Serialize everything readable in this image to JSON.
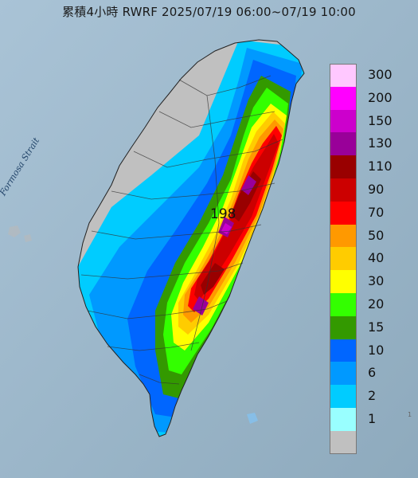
{
  "title": "累積4小時 RWRF 2025/07/19 06:00~07/19 10:00",
  "strait_label": "Formosa Strait",
  "max_value": "198",
  "corner_mark": "1",
  "legend": {
    "items": [
      {
        "label": "300",
        "color": "#ffc8ff"
      },
      {
        "label": "200",
        "color": "#ff00ff"
      },
      {
        "label": "150",
        "color": "#cc00cc"
      },
      {
        "label": "130",
        "color": "#990099"
      },
      {
        "label": "110",
        "color": "#990000"
      },
      {
        "label": "90",
        "color": "#cc0000"
      },
      {
        "label": "70",
        "color": "#ff0000"
      },
      {
        "label": "50",
        "color": "#ff9900"
      },
      {
        "label": "40",
        "color": "#ffcc00"
      },
      {
        "label": "30",
        "color": "#ffff00"
      },
      {
        "label": "20",
        "color": "#33ff00"
      },
      {
        "label": "15",
        "color": "#339900"
      },
      {
        "label": "10",
        "color": "#0066ff"
      },
      {
        "label": "6",
        "color": "#0099ff"
      },
      {
        "label": "2",
        "color": "#00ccff"
      },
      {
        "label": "1",
        "color": "#99ffff"
      },
      {
        "label": "",
        "color": "#c0c0c0"
      }
    ]
  }
}
